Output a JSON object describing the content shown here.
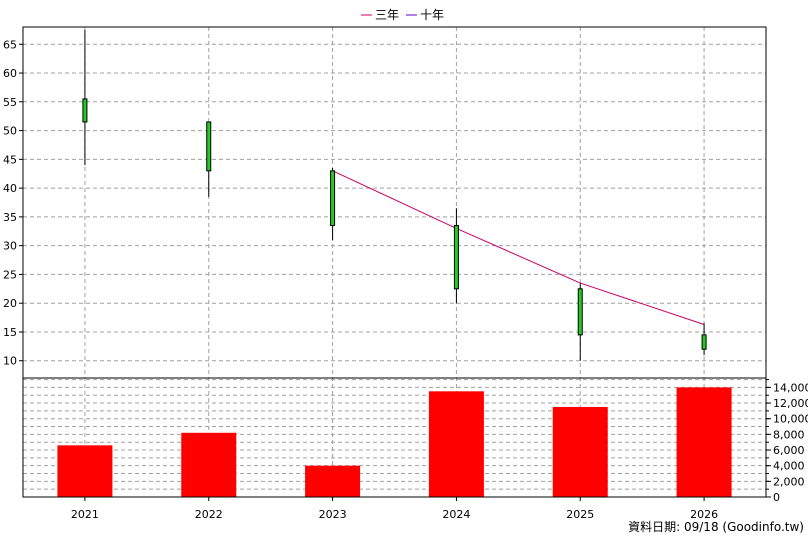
{
  "chart_data": [
    {
      "type": "candlestick",
      "panel": "price",
      "legend": {
        "placement": "top-center",
        "entries": [
          "三年",
          "十年"
        ]
      },
      "colors": {
        "three_year_line": "#cc0066",
        "ten_year_line": "#6600cc",
        "candle_body": "#22cc22",
        "wick": "#000000"
      },
      "ylim": [
        7,
        68
      ],
      "yticks": [
        10,
        15,
        20,
        25,
        30,
        35,
        40,
        45,
        50,
        55,
        60,
        65
      ],
      "grid": true,
      "candles": [
        {
          "x": "2021",
          "high": 67.5,
          "low": 44.0,
          "open": 55.5,
          "close": 51.5
        },
        {
          "x": "2022",
          "high": 51.5,
          "low": 38.5,
          "open": 51.5,
          "close": 43.0
        },
        {
          "x": "2023",
          "high": 43.5,
          "low": 31.0,
          "open": 43.0,
          "close": 33.5
        },
        {
          "x": "2024",
          "high": 36.5,
          "low": 20.0,
          "open": 33.5,
          "close": 22.5
        },
        {
          "x": "2025",
          "high": 23.5,
          "low": 10.0,
          "open": 22.5,
          "close": 14.5
        },
        {
          "x": "2026",
          "high": 16.5,
          "low": 11.0,
          "open": 14.5,
          "close": 12.0
        }
      ],
      "three_year_line": [
        {
          "x": "2023",
          "y": 43.0
        },
        {
          "x": "2024",
          "y": 33.0
        },
        {
          "x": "2025",
          "y": 23.5
        },
        {
          "x": "2026",
          "y": 16.3
        }
      ]
    },
    {
      "type": "bar",
      "panel": "volume",
      "categories": [
        "2021",
        "2022",
        "2023",
        "2024",
        "2025",
        "2026"
      ],
      "values": [
        6600,
        8200,
        4000,
        13500,
        11500,
        14000
      ],
      "ylim": [
        0,
        15200
      ],
      "yticks": [
        0,
        2000,
        4000,
        6000,
        8000,
        10000,
        12000,
        14000
      ],
      "ytick_labels": [
        "0",
        "2,000",
        "4,000",
        "6,000",
        "8,000",
        "10,000",
        "12,000",
        "14,000"
      ],
      "bar_color": "#ff0000",
      "grid": true
    }
  ],
  "footer": {
    "text": "資料日期: 09/18  (Goodinfo.tw)"
  }
}
